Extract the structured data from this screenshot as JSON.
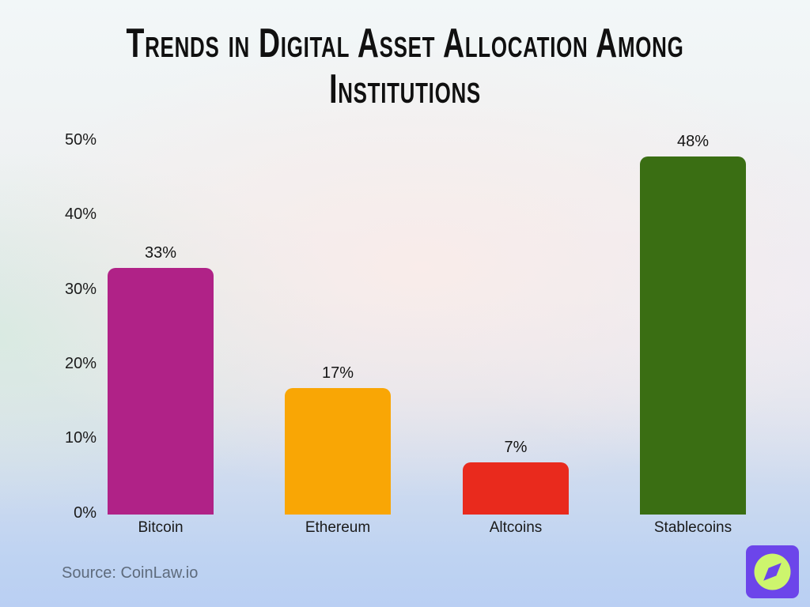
{
  "header": {
    "title_lines": [
      "Trends in Digital Asset Allocation Among",
      "Institutions"
    ]
  },
  "chart_data": {
    "type": "bar",
    "title": "Trends in Digital Asset Allocation Among Institutions",
    "categories": [
      "Bitcoin",
      "Ethereum",
      "Altcoins",
      "Stablecoins"
    ],
    "values": [
      33,
      17,
      7,
      48
    ],
    "value_labels": [
      "33%",
      "17%",
      "7%",
      "48%"
    ],
    "bar_colors": [
      "#b02287",
      "#f9a605",
      "#e92a1d",
      "#3a6e13"
    ],
    "xlabel": "",
    "ylabel": "",
    "ylim": [
      0,
      50
    ],
    "yticks": [
      "50%",
      "40%",
      "30%",
      "20%",
      "10%",
      "0%"
    ],
    "grid": false,
    "legend": false
  },
  "footer": {
    "source": "Source: CoinLaw.io"
  },
  "logo": {
    "label": "coinlaw-compass-logo",
    "bg_color": "#6c45ea",
    "fg_color": "#cdf56d"
  },
  "colors": {
    "title_text": "#101010",
    "axis_text": "#1b1b1b",
    "source_text": "#5e6b7c"
  }
}
